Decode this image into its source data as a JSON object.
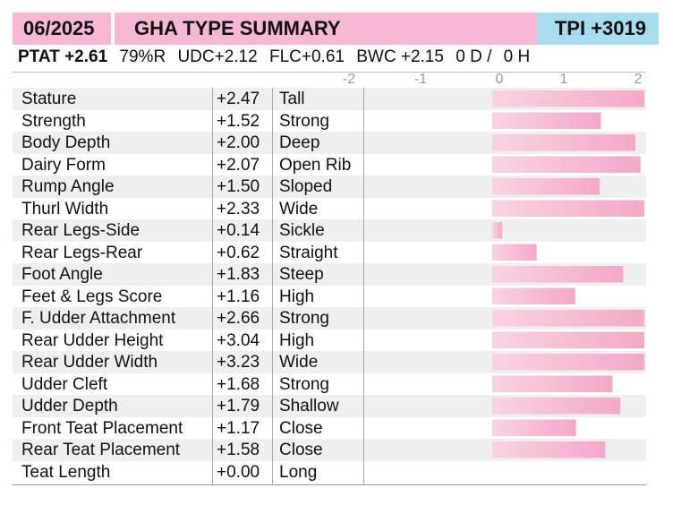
{
  "header": {
    "date": "06/2025",
    "title": "GHA TYPE SUMMARY",
    "tpi": "TPI +3019"
  },
  "stats": {
    "ptat": "PTAT +2.61",
    "reliability": "79%R",
    "udc": "UDC+2.12",
    "flc": "FLC+0.61",
    "bwc": "BWC +2.15",
    "daughters": "0 D /",
    "herds": "0 H"
  },
  "chart_data": {
    "type": "bar",
    "orientation": "horizontal",
    "xlim": [
      -2,
      2
    ],
    "ticks": [
      "-2",
      "-1",
      "0",
      "1",
      "2"
    ],
    "bar_color": "#f3a8c8",
    "rows": [
      {
        "trait": "Stature",
        "value": 2.47,
        "value_label": "+2.47",
        "descriptor": "Tall"
      },
      {
        "trait": "Strength",
        "value": 1.52,
        "value_label": "+1.52",
        "descriptor": "Strong"
      },
      {
        "trait": "Body Depth",
        "value": 2.0,
        "value_label": "+2.00",
        "descriptor": "Deep"
      },
      {
        "trait": "Dairy Form",
        "value": 2.07,
        "value_label": "+2.07",
        "descriptor": "Open Rib"
      },
      {
        "trait": "Rump Angle",
        "value": 1.5,
        "value_label": "+1.50",
        "descriptor": "Sloped"
      },
      {
        "trait": "Thurl Width",
        "value": 2.33,
        "value_label": "+2.33",
        "descriptor": "Wide"
      },
      {
        "trait": "Rear Legs-Side",
        "value": 0.14,
        "value_label": "+0.14",
        "descriptor": "Sickle"
      },
      {
        "trait": "Rear Legs-Rear",
        "value": 0.62,
        "value_label": "+0.62",
        "descriptor": "Straight"
      },
      {
        "trait": "Foot Angle",
        "value": 1.83,
        "value_label": "+1.83",
        "descriptor": "Steep"
      },
      {
        "trait": "Feet & Legs Score",
        "value": 1.16,
        "value_label": "+1.16",
        "descriptor": "High"
      },
      {
        "trait": "F. Udder Attachment",
        "value": 2.66,
        "value_label": "+2.66",
        "descriptor": "Strong"
      },
      {
        "trait": "Rear Udder Height",
        "value": 3.04,
        "value_label": "+3.04",
        "descriptor": "High"
      },
      {
        "trait": "Rear Udder Width",
        "value": 3.23,
        "value_label": "+3.23",
        "descriptor": "Wide"
      },
      {
        "trait": "Udder Cleft",
        "value": 1.68,
        "value_label": "+1.68",
        "descriptor": "Strong"
      },
      {
        "trait": "Udder Depth",
        "value": 1.79,
        "value_label": "+1.79",
        "descriptor": "Shallow"
      },
      {
        "trait": "Front Teat Placement",
        "value": 1.17,
        "value_label": "+1.17",
        "descriptor": "Close"
      },
      {
        "trait": "Rear Teat Placement",
        "value": 1.58,
        "value_label": "+1.58",
        "descriptor": "Close"
      },
      {
        "trait": "Teat Length",
        "value": 0.0,
        "value_label": "+0.00",
        "descriptor": "Long"
      }
    ]
  }
}
